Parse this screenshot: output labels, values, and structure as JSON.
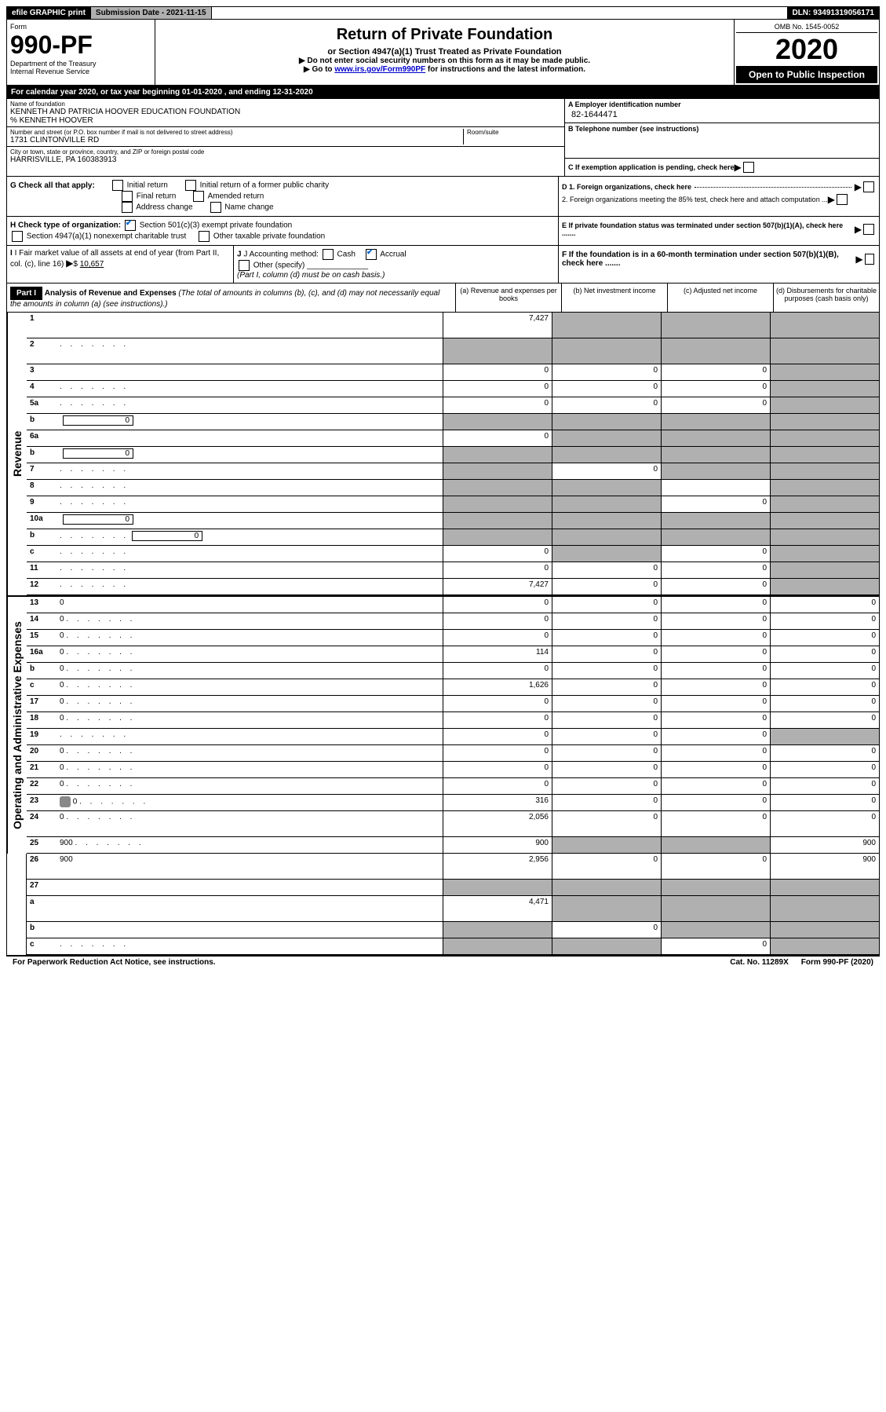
{
  "topbar": {
    "efile": "efile GRAPHIC print",
    "submission_label": "Submission Date - 2021-11-15",
    "dln": "DLN: 93491319056171"
  },
  "header": {
    "form_word": "Form",
    "form_num": "990-PF",
    "dept": "Department of the Treasury",
    "irs": "Internal Revenue Service",
    "title": "Return of Private Foundation",
    "subtitle": "or Section 4947(a)(1) Trust Treated as Private Foundation",
    "note1": "▶ Do not enter social security numbers on this form as it may be made public.",
    "note2_pre": "▶ Go to ",
    "note2_link": "www.irs.gov/Form990PF",
    "note2_post": " for instructions and the latest information.",
    "omb": "OMB No. 1545-0052",
    "year": "2020",
    "inspect": "Open to Public Inspection"
  },
  "calyear": {
    "text_pre": "For calendar year 2020, or tax year beginning ",
    "begin": "01-01-2020",
    "text_mid": " , and ending ",
    "end": "12-31-2020"
  },
  "info": {
    "name_lbl": "Name of foundation",
    "name": "KENNETH AND PATRICIA HOOVER EDUCATION FOUNDATION",
    "care_of": "% KENNETH HOOVER",
    "addr_lbl": "Number and street (or P.O. box number if mail is not delivered to street address)",
    "addr": "1731 CLINTONVILLE RD",
    "room_lbl": "Room/suite",
    "city_lbl": "City or town, state or province, country, and ZIP or foreign postal code",
    "city": "HARRISVILLE, PA  160383913",
    "ein_lbl": "A Employer identification number",
    "ein": "82-1644471",
    "phone_lbl": "B Telephone number (see instructions)",
    "c_lbl": "C If exemption application is pending, check here",
    "d1": "D 1. Foreign organizations, check here",
    "d2": "2. Foreign organizations meeting the 85% test, check here and attach computation ...",
    "e": "E  If private foundation status was terminated under section 507(b)(1)(A), check here .......",
    "f": "F  If the foundation is in a 60-month termination under section 507(b)(1)(B), check here ......."
  },
  "checks": {
    "g_lbl": "G Check all that apply:",
    "g_initial": "Initial return",
    "g_initial_pub": "Initial return of a former public charity",
    "g_final": "Final return",
    "g_amended": "Amended return",
    "g_addr": "Address change",
    "g_name": "Name change",
    "h_lbl": "H Check type of organization:",
    "h_501c3": "Section 501(c)(3) exempt private foundation",
    "h_4947": "Section 4947(a)(1) nonexempt charitable trust",
    "h_other": "Other taxable private foundation",
    "i_lbl": "I Fair market value of all assets at end of year (from Part II, col. (c), line 16)",
    "i_val": "10,657",
    "j_lbl": "J Accounting method:",
    "j_cash": "Cash",
    "j_accrual": "Accrual",
    "j_other": "Other (specify)",
    "j_note": "(Part I, column (d) must be on cash basis.)"
  },
  "part1": {
    "label": "Part I",
    "title": "Analysis of Revenue and Expenses",
    "note": "(The total of amounts in columns (b), (c), and (d) may not necessarily equal the amounts in column (a) (see instructions).)",
    "col_a": "(a) Revenue and expenses per books",
    "col_b": "(b) Net investment income",
    "col_c": "(c) Adjusted net income",
    "col_d": "(d) Disbursements for charitable purposes (cash basis only)"
  },
  "sides": {
    "revenue": "Revenue",
    "expenses": "Operating and Administrative Expenses"
  },
  "rows": [
    {
      "n": "1",
      "d": "",
      "a": "7,427",
      "b": "",
      "c": "",
      "b_sh": true,
      "c_sh": true,
      "d_sh": true,
      "tall": true
    },
    {
      "n": "2",
      "d": "",
      "a": "",
      "b": "",
      "c": "",
      "a_sh": true,
      "b_sh": true,
      "c_sh": true,
      "d_sh": true,
      "tall": true,
      "dots": true
    },
    {
      "n": "3",
      "d": "",
      "a": "0",
      "b": "0",
      "c": "0",
      "d_sh": true
    },
    {
      "n": "4",
      "d": "",
      "a": "0",
      "b": "0",
      "c": "0",
      "d_sh": true,
      "dots": true
    },
    {
      "n": "5a",
      "d": "",
      "a": "0",
      "b": "0",
      "c": "0",
      "d_sh": true,
      "dots": true
    },
    {
      "n": "b",
      "d": "",
      "a": "",
      "b": "",
      "c": "",
      "a_sh": true,
      "b_sh": true,
      "c_sh": true,
      "d_sh": true,
      "inline": "0"
    },
    {
      "n": "6a",
      "d": "",
      "a": "0",
      "b": "",
      "c": "",
      "b_sh": true,
      "c_sh": true,
      "d_sh": true
    },
    {
      "n": "b",
      "d": "",
      "a": "",
      "b": "",
      "c": "",
      "a_sh": true,
      "b_sh": true,
      "c_sh": true,
      "d_sh": true,
      "inline": "0"
    },
    {
      "n": "7",
      "d": "",
      "a": "",
      "b": "0",
      "c": "",
      "a_sh": true,
      "c_sh": true,
      "d_sh": true,
      "dots": true
    },
    {
      "n": "8",
      "d": "",
      "a": "",
      "b": "",
      "c": "",
      "a_sh": true,
      "b_sh": true,
      "d_sh": true,
      "dots": true
    },
    {
      "n": "9",
      "d": "",
      "a": "",
      "b": "",
      "c": "0",
      "a_sh": true,
      "b_sh": true,
      "d_sh": true,
      "dots": true
    },
    {
      "n": "10a",
      "d": "",
      "a": "",
      "b": "",
      "c": "",
      "a_sh": true,
      "b_sh": true,
      "c_sh": true,
      "d_sh": true,
      "inline": "0"
    },
    {
      "n": "b",
      "d": "",
      "a": "",
      "b": "",
      "c": "",
      "a_sh": true,
      "b_sh": true,
      "c_sh": true,
      "d_sh": true,
      "inline": "0",
      "dots": true
    },
    {
      "n": "c",
      "d": "",
      "a": "0",
      "b": "",
      "c": "0",
      "b_sh": true,
      "d_sh": true,
      "dots": true
    },
    {
      "n": "11",
      "d": "",
      "a": "0",
      "b": "0",
      "c": "0",
      "d_sh": true,
      "dots": true
    },
    {
      "n": "12",
      "d": "",
      "a": "7,427",
      "b": "0",
      "c": "0",
      "d_sh": true,
      "dots": true
    },
    {
      "n": "13",
      "d": "0",
      "a": "0",
      "b": "0",
      "c": "0"
    },
    {
      "n": "14",
      "d": "0",
      "a": "0",
      "b": "0",
      "c": "0",
      "dots": true
    },
    {
      "n": "15",
      "d": "0",
      "a": "0",
      "b": "0",
      "c": "0",
      "dots": true
    },
    {
      "n": "16a",
      "d": "0",
      "a": "114",
      "b": "0",
      "c": "0",
      "dots": true
    },
    {
      "n": "b",
      "d": "0",
      "a": "0",
      "b": "0",
      "c": "0",
      "dots": true
    },
    {
      "n": "c",
      "d": "0",
      "a": "1,626",
      "b": "0",
      "c": "0",
      "dots": true
    },
    {
      "n": "17",
      "d": "0",
      "a": "0",
      "b": "0",
      "c": "0",
      "dots": true
    },
    {
      "n": "18",
      "d": "0",
      "a": "0",
      "b": "0",
      "c": "0",
      "dots": true
    },
    {
      "n": "19",
      "d": "",
      "a": "0",
      "b": "0",
      "c": "0",
      "d_sh": true,
      "dots": true
    },
    {
      "n": "20",
      "d": "0",
      "a": "0",
      "b": "0",
      "c": "0",
      "dots": true
    },
    {
      "n": "21",
      "d": "0",
      "a": "0",
      "b": "0",
      "c": "0",
      "dots": true
    },
    {
      "n": "22",
      "d": "0",
      "a": "0",
      "b": "0",
      "c": "0",
      "dots": true
    },
    {
      "n": "23",
      "d": "0",
      "a": "316",
      "b": "0",
      "c": "0",
      "dots": true,
      "sched_icon": true
    },
    {
      "n": "24",
      "d": "0",
      "a": "2,056",
      "b": "0",
      "c": "0",
      "tall": true,
      "dots": true
    },
    {
      "n": "25",
      "d": "900",
      "a": "900",
      "b": "",
      "c": "",
      "b_sh": true,
      "c_sh": true,
      "dots": true
    },
    {
      "n": "26",
      "d": "900",
      "a": "2,956",
      "b": "0",
      "c": "0",
      "tall": true
    },
    {
      "n": "27",
      "d": "",
      "a": "",
      "b": "",
      "c": "",
      "a_sh": true,
      "b_sh": true,
      "c_sh": true,
      "d_sh": true
    },
    {
      "n": "a",
      "d": "",
      "a": "4,471",
      "b": "",
      "c": "",
      "b_sh": true,
      "c_sh": true,
      "d_sh": true,
      "tall": true
    },
    {
      "n": "b",
      "d": "",
      "a": "",
      "b": "0",
      "c": "",
      "a_sh": true,
      "c_sh": true,
      "d_sh": true
    },
    {
      "n": "c",
      "d": "",
      "a": "",
      "b": "",
      "c": "0",
      "a_sh": true,
      "b_sh": true,
      "d_sh": true,
      "dots": true
    }
  ],
  "footer": {
    "left": "For Paperwork Reduction Act Notice, see instructions.",
    "mid": "Cat. No. 11289X",
    "right": "Form 990-PF (2020)"
  },
  "colors": {
    "link": "#0000cc",
    "check": "#0066cc",
    "shade": "#b0b0b0"
  }
}
